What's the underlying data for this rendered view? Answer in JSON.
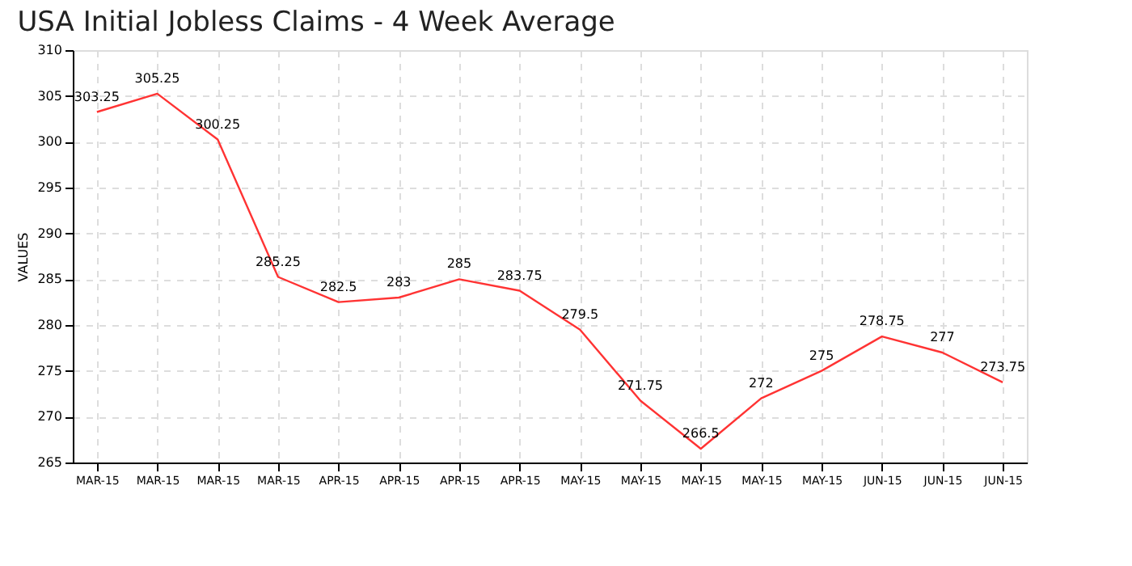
{
  "chart_data": {
    "type": "line",
    "title": "USA Initial Jobless Claims - 4 Week Average",
    "ylabel": "VALUES",
    "categories": [
      "MAR-15",
      "MAR-15",
      "MAR-15",
      "MAR-15",
      "APR-15",
      "APR-15",
      "APR-15",
      "APR-15",
      "MAY-15",
      "MAY-15",
      "MAY-15",
      "MAY-15",
      "MAY-15",
      "JUN-15",
      "JUN-15",
      "JUN-15"
    ],
    "series": [
      {
        "color": "#ff3333",
        "values": [
          303.25,
          305.25,
          300.25,
          285.25,
          282.5,
          283,
          285,
          283.75,
          279.5,
          271.75,
          266.5,
          272,
          275,
          278.75,
          277,
          273.75
        ]
      }
    ],
    "ylim": [
      265,
      310
    ],
    "yticks": [
      265,
      270,
      275,
      280,
      285,
      290,
      295,
      300,
      305,
      310
    ],
    "grid": true,
    "data_labels": true,
    "marker": "none",
    "line_style": "solid"
  }
}
